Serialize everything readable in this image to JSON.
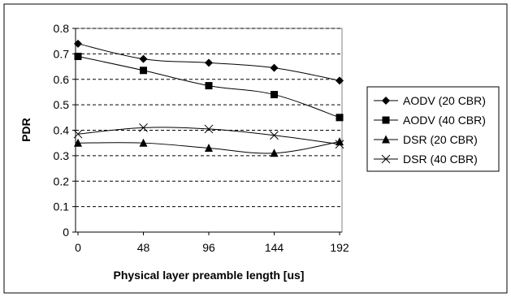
{
  "chart_data": {
    "type": "line",
    "title": "",
    "xlabel": "Physical layer preamble length [us]",
    "ylabel": "PDR",
    "x": [
      0,
      48,
      96,
      144,
      192
    ],
    "x_tick_labels": [
      "0",
      "48",
      "96",
      "144",
      "192"
    ],
    "ylim": [
      0,
      0.8
    ],
    "y_ticks": [
      0,
      0.1,
      0.2,
      0.3,
      0.4,
      0.5,
      0.6,
      0.7,
      0.8
    ],
    "y_tick_labels": [
      "0",
      "0.1",
      "0.2",
      "0.3",
      "0.4",
      "0.5",
      "0.6",
      "0.7",
      "0.8"
    ],
    "grid": "horizontal dashed",
    "legend_position": "right",
    "series": [
      {
        "name": "AODV (20 CBR)",
        "marker": "diamond",
        "values": [
          0.74,
          0.68,
          0.665,
          0.645,
          0.595
        ]
      },
      {
        "name": "AODV (40 CBR)",
        "marker": "square",
        "values": [
          0.69,
          0.635,
          0.575,
          0.54,
          0.45
        ]
      },
      {
        "name": "DSR (20 CBR)",
        "marker": "triangle",
        "values": [
          0.35,
          0.35,
          0.33,
          0.31,
          0.355
        ]
      },
      {
        "name": "DSR (40 CBR)",
        "marker": "x",
        "values": [
          0.385,
          0.41,
          0.405,
          0.38,
          0.345
        ]
      }
    ]
  }
}
